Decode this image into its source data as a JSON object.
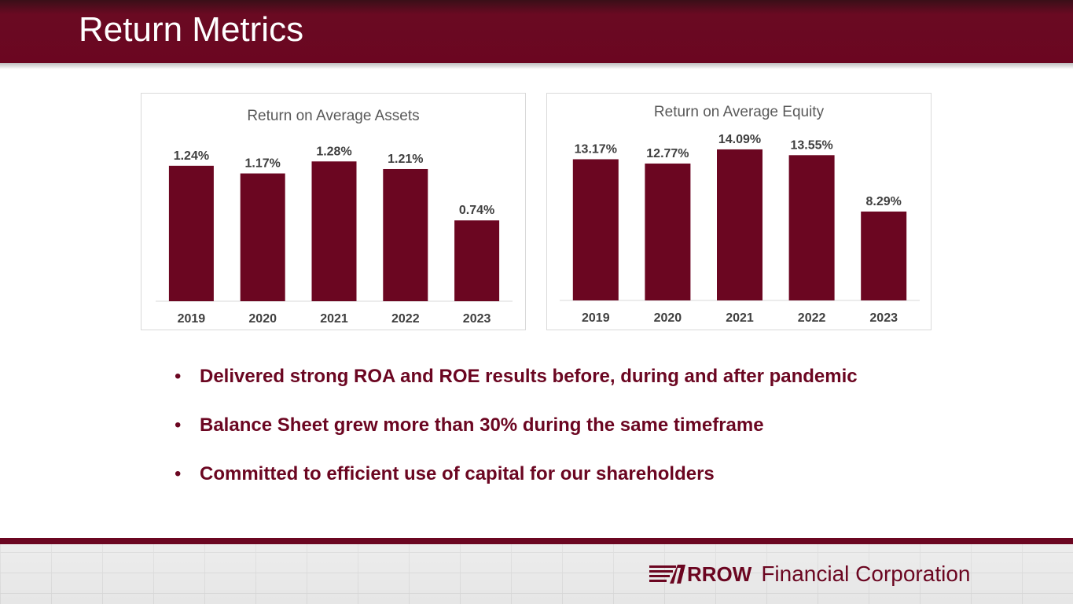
{
  "page": {
    "title": "Return Metrics"
  },
  "colors": {
    "brand": "#6b0621",
    "label": "#3f3f3f",
    "axis": "#d9d9d9"
  },
  "chart_data": [
    {
      "type": "bar",
      "title": "Return on Average Assets",
      "categories": [
        "2019",
        "2020",
        "2021",
        "2022",
        "2023"
      ],
      "values": [
        1.24,
        1.17,
        1.28,
        1.21,
        0.74
      ],
      "labels": [
        "1.24%",
        "1.17%",
        "1.28%",
        "1.21%",
        "0.74%"
      ],
      "ylim": [
        0,
        1.4
      ],
      "xlabel": "",
      "ylabel": "",
      "grid": false,
      "legend": "none"
    },
    {
      "type": "bar",
      "title": "Return on Average Equity",
      "categories": [
        "2019",
        "2020",
        "2021",
        "2022",
        "2023"
      ],
      "values": [
        13.17,
        12.77,
        14.09,
        13.55,
        8.29
      ],
      "labels": [
        "13.17%",
        "12.77%",
        "14.09%",
        "13.55%",
        "8.29%"
      ],
      "ylim": [
        0,
        15.7
      ],
      "xlabel": "",
      "ylabel": "",
      "grid": false,
      "legend": "none"
    }
  ],
  "bullets": [
    "Delivered strong ROA and ROE results before, during and after pandemic",
    "Balance Sheet grew more than 30% during the same timeframe",
    "Committed to efficient use of capital for our shareholders"
  ],
  "bullet_symbol": "•",
  "footer": {
    "brand": "RROW",
    "company": "Financial Corporation",
    "logo_icon": "arrow-logo-icon"
  }
}
